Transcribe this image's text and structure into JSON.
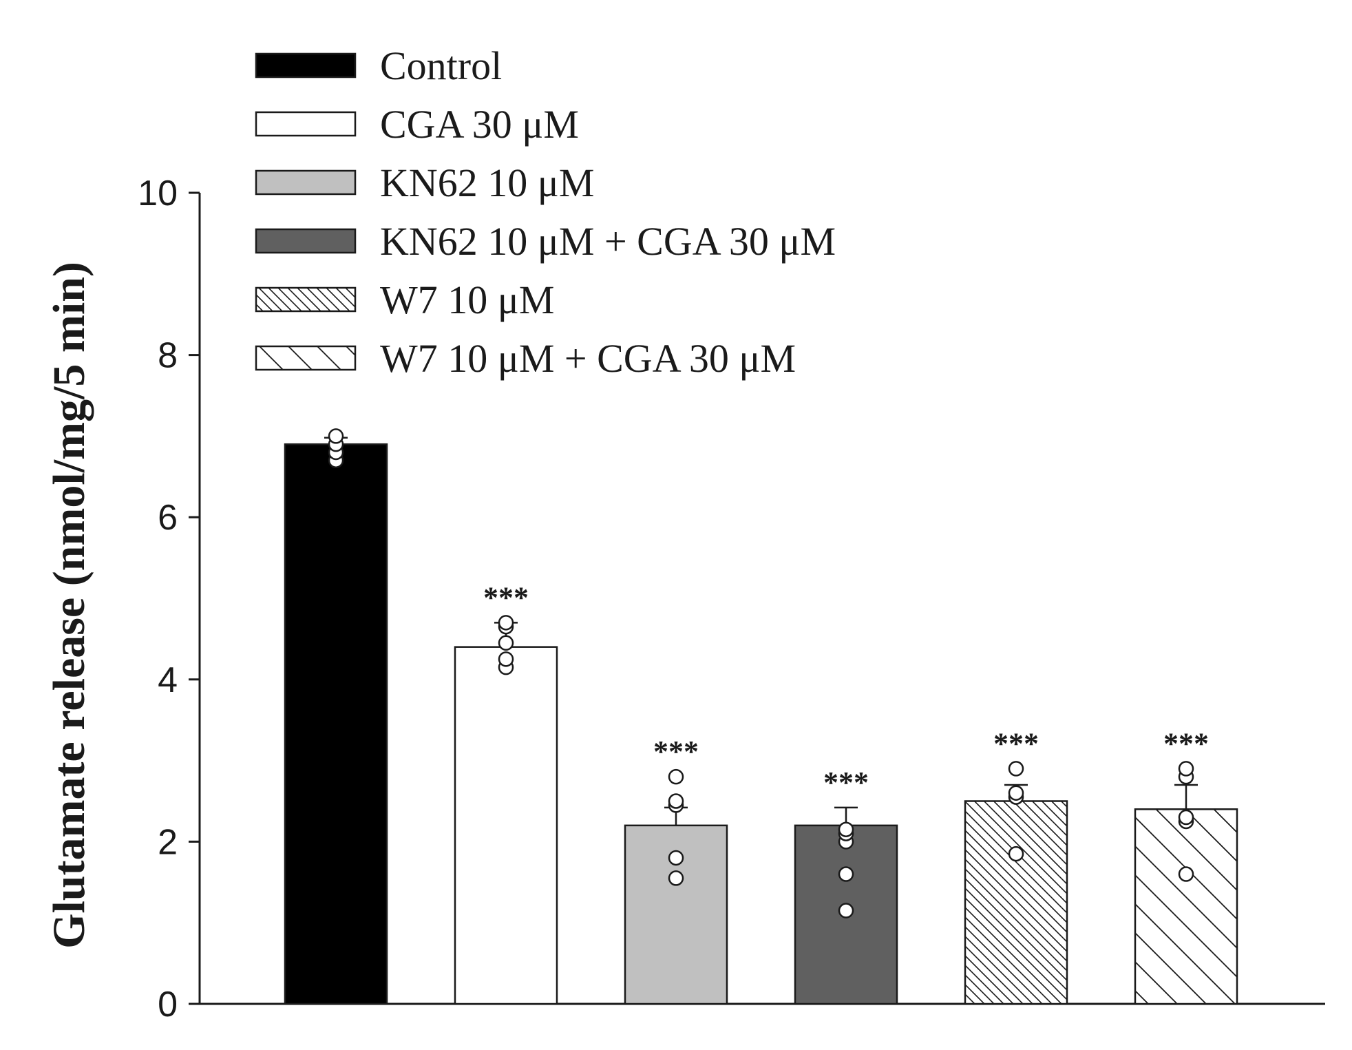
{
  "chart_data": {
    "type": "bar",
    "title": "",
    "xlabel": "",
    "ylabel": "Glutamate release (nmol/mg/5 min)",
    "ylim": [
      0,
      10
    ],
    "yticks": [
      0,
      2,
      4,
      6,
      8,
      10
    ],
    "grid": false,
    "legend_position": "top-left",
    "series": [
      {
        "name": "Control",
        "value": 6.9,
        "error": 0.08,
        "points": [
          6.7,
          6.8,
          6.9,
          7.0
        ],
        "annotation": "",
        "fill": "#000000",
        "pattern": "solid"
      },
      {
        "name": "CGA 30 μM",
        "value": 4.4,
        "error": 0.3,
        "points": [
          4.15,
          4.25,
          4.45,
          4.65,
          4.7
        ],
        "annotation": "***",
        "fill": "#ffffff",
        "pattern": "solid"
      },
      {
        "name": "KN62 10 μM",
        "value": 2.2,
        "error": 0.22,
        "points": [
          1.55,
          1.8,
          2.45,
          2.5,
          2.8
        ],
        "annotation": "***",
        "fill": "#c0c0c0",
        "pattern": "solid"
      },
      {
        "name": "KN62 10 μM + CGA 30 μM",
        "value": 2.2,
        "error": 0.22,
        "points": [
          1.15,
          1.6,
          2.0,
          2.1,
          2.15
        ],
        "annotation": "***",
        "fill": "#606060",
        "pattern": "solid"
      },
      {
        "name": "W7 10 μM",
        "value": 2.5,
        "error": 0.2,
        "points": [
          1.85,
          2.55,
          2.6,
          2.9
        ],
        "annotation": "***",
        "fill": "#ffffff",
        "pattern": "dense-hatch"
      },
      {
        "name": "W7 10 μM + CGA 30 μM",
        "value": 2.4,
        "error": 0.3,
        "points": [
          1.6,
          2.25,
          2.3,
          2.8,
          2.9
        ],
        "annotation": "***",
        "fill": "#ffffff",
        "pattern": "sparse-hatch"
      }
    ]
  }
}
